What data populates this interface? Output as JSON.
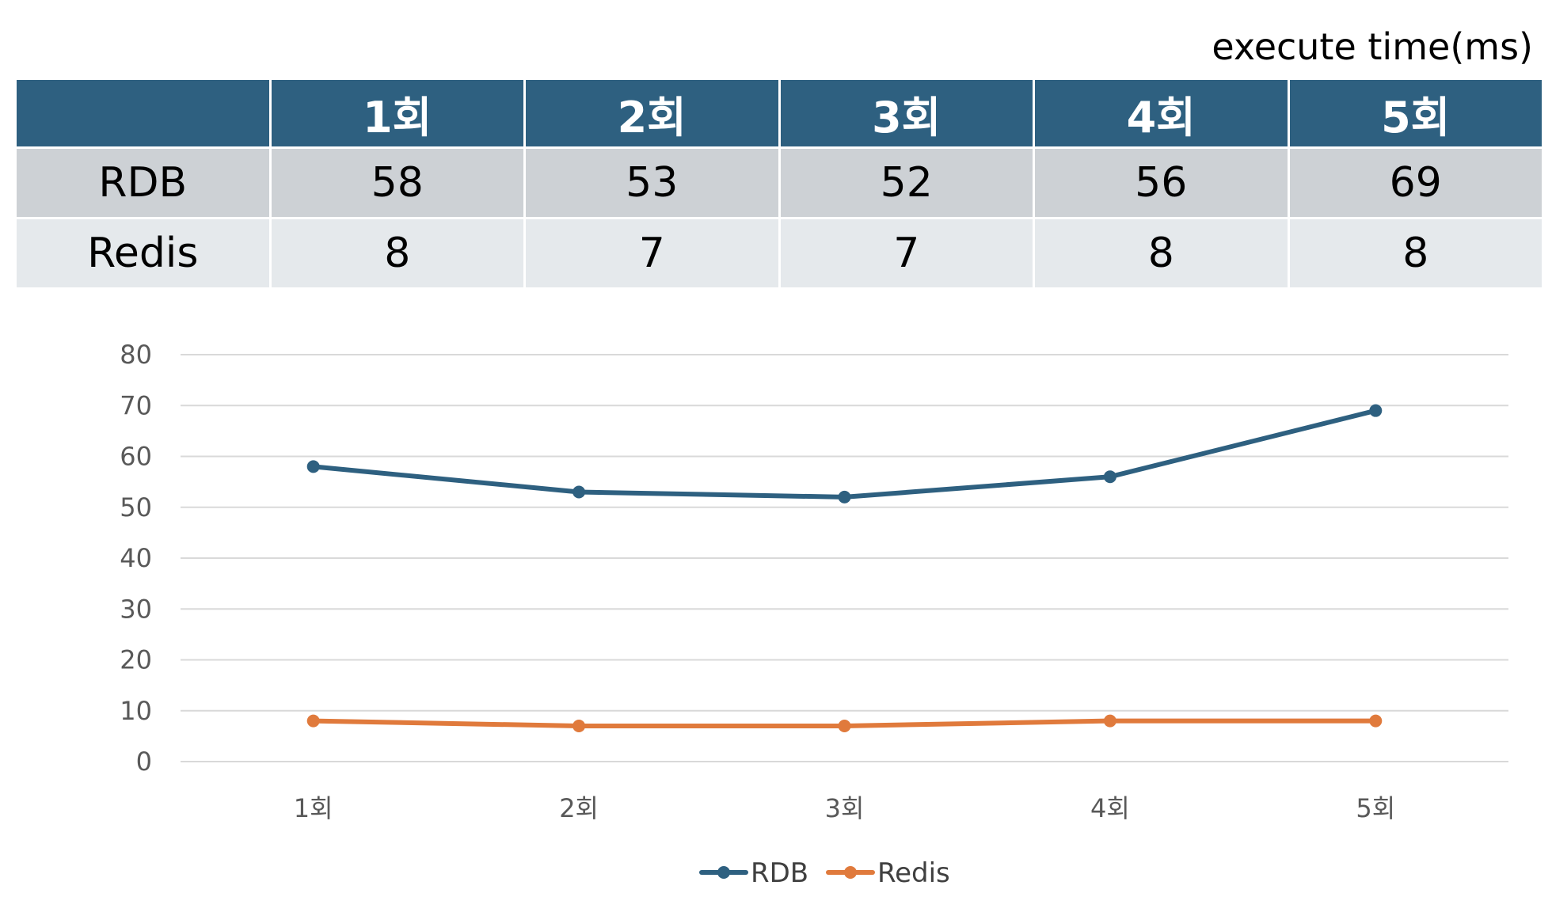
{
  "unit_label": "execute time(ms)",
  "table": {
    "headers": [
      "",
      "1회",
      "2회",
      "3회",
      "4회",
      "5회"
    ],
    "rows": [
      {
        "label": "RDB",
        "values": [
          "58",
          "53",
          "52",
          "56",
          "69"
        ]
      },
      {
        "label": "Redis",
        "values": [
          "8",
          "7",
          "7",
          "8",
          "8"
        ]
      }
    ]
  },
  "colors": {
    "header_bg": "#2e6080",
    "row1_bg": "#cdd1d5",
    "row2_bg": "#e5e9ec",
    "grid": "#d9d9d9"
  },
  "chart_data": {
    "type": "line",
    "categories": [
      "1회",
      "2회",
      "3회",
      "4회",
      "5회"
    ],
    "series": [
      {
        "name": "RDB",
        "values": [
          58,
          53,
          52,
          56,
          69
        ],
        "color": "#2e6080"
      },
      {
        "name": "Redis",
        "values": [
          8,
          7,
          7,
          8,
          8
        ],
        "color": "#e07a3c"
      }
    ],
    "ylim": [
      0,
      80
    ],
    "yticks": [
      0,
      10,
      20,
      30,
      40,
      50,
      60,
      70,
      80
    ],
    "grid": true,
    "legend_position": "bottom"
  }
}
